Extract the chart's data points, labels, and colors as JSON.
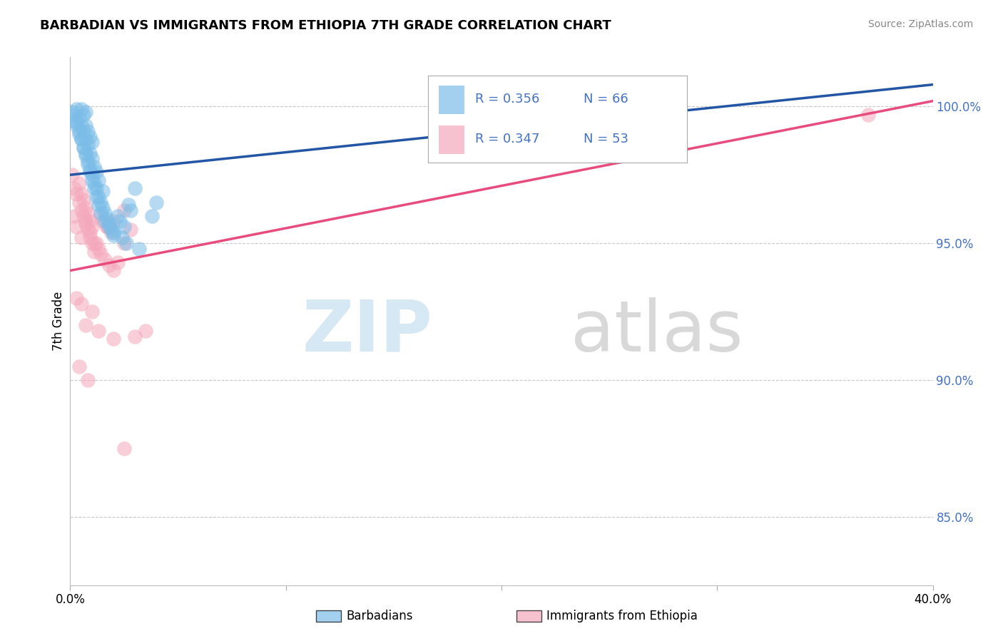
{
  "title": "BARBADIAN VS IMMIGRANTS FROM ETHIOPIA 7TH GRADE CORRELATION CHART",
  "source": "Source: ZipAtlas.com",
  "ylabel": "7th Grade",
  "y_tick_labels": [
    "85.0%",
    "90.0%",
    "95.0%",
    "100.0%"
  ],
  "y_tick_values": [
    0.85,
    0.9,
    0.95,
    1.0
  ],
  "x_range": [
    0.0,
    0.4
  ],
  "y_range": [
    0.825,
    1.018
  ],
  "legend_r1": "R = 0.356",
  "legend_n1": "N = 66",
  "legend_r2": "R = 0.347",
  "legend_n2": "N = 53",
  "label1": "Barbadians",
  "label2": "Immigrants from Ethiopia",
  "color_blue": "#7bbde8",
  "color_pink": "#f4a8bb",
  "color_blue_line": "#2255a4",
  "color_pink_line": "#e84c7d",
  "color_legend_text": "#4472c4",
  "color_grid": "#c8c8c8",
  "blue_scatter_x": [
    0.001,
    0.002,
    0.003,
    0.003,
    0.004,
    0.004,
    0.005,
    0.005,
    0.005,
    0.006,
    0.006,
    0.006,
    0.007,
    0.007,
    0.007,
    0.007,
    0.008,
    0.008,
    0.008,
    0.009,
    0.009,
    0.009,
    0.01,
    0.01,
    0.01,
    0.011,
    0.011,
    0.012,
    0.012,
    0.013,
    0.013,
    0.014,
    0.015,
    0.015,
    0.016,
    0.017,
    0.018,
    0.019,
    0.02,
    0.022,
    0.023,
    0.025,
    0.027,
    0.028,
    0.03,
    0.002,
    0.003,
    0.004,
    0.005,
    0.006,
    0.007,
    0.008,
    0.009,
    0.01,
    0.011,
    0.012,
    0.013,
    0.014,
    0.016,
    0.018,
    0.02,
    0.024,
    0.026,
    0.032,
    0.038,
    0.04
  ],
  "blue_scatter_y": [
    0.998,
    0.995,
    0.993,
    0.999,
    0.99,
    0.996,
    0.988,
    0.993,
    0.999,
    0.985,
    0.991,
    0.997,
    0.983,
    0.988,
    0.993,
    0.998,
    0.98,
    0.986,
    0.991,
    0.977,
    0.983,
    0.989,
    0.975,
    0.981,
    0.987,
    0.972,
    0.978,
    0.97,
    0.976,
    0.967,
    0.973,
    0.965,
    0.963,
    0.969,
    0.961,
    0.959,
    0.957,
    0.955,
    0.953,
    0.96,
    0.958,
    0.956,
    0.964,
    0.962,
    0.97,
    0.997,
    0.994,
    0.991,
    0.988,
    0.985,
    0.982,
    0.979,
    0.976,
    0.973,
    0.97,
    0.967,
    0.964,
    0.961,
    0.958,
    0.956,
    0.954,
    0.952,
    0.95,
    0.948,
    0.96,
    0.965
  ],
  "pink_scatter_x": [
    0.001,
    0.002,
    0.003,
    0.004,
    0.004,
    0.005,
    0.005,
    0.006,
    0.006,
    0.007,
    0.007,
    0.008,
    0.008,
    0.009,
    0.009,
    0.01,
    0.01,
    0.011,
    0.012,
    0.013,
    0.014,
    0.015,
    0.016,
    0.017,
    0.018,
    0.019,
    0.02,
    0.022,
    0.025,
    0.028,
    0.002,
    0.003,
    0.005,
    0.007,
    0.009,
    0.011,
    0.014,
    0.017,
    0.02,
    0.025,
    0.003,
    0.005,
    0.007,
    0.01,
    0.013,
    0.02,
    0.03,
    0.035,
    0.004,
    0.008,
    0.025,
    0.27,
    0.37
  ],
  "pink_scatter_y": [
    0.975,
    0.97,
    0.968,
    0.965,
    0.972,
    0.962,
    0.968,
    0.96,
    0.966,
    0.957,
    0.963,
    0.955,
    0.961,
    0.952,
    0.958,
    0.95,
    0.956,
    0.947,
    0.95,
    0.948,
    0.946,
    0.958,
    0.944,
    0.956,
    0.942,
    0.954,
    0.94,
    0.943,
    0.95,
    0.955,
    0.96,
    0.956,
    0.952,
    0.958,
    0.954,
    0.95,
    0.96,
    0.956,
    0.958,
    0.962,
    0.93,
    0.928,
    0.92,
    0.925,
    0.918,
    0.915,
    0.916,
    0.918,
    0.905,
    0.9,
    0.875,
    0.999,
    0.997
  ],
  "blue_line_x": [
    0.0,
    0.4
  ],
  "blue_line_y": [
    0.975,
    1.008
  ],
  "pink_line_x": [
    0.0,
    0.4
  ],
  "pink_line_y": [
    0.94,
    1.002
  ]
}
